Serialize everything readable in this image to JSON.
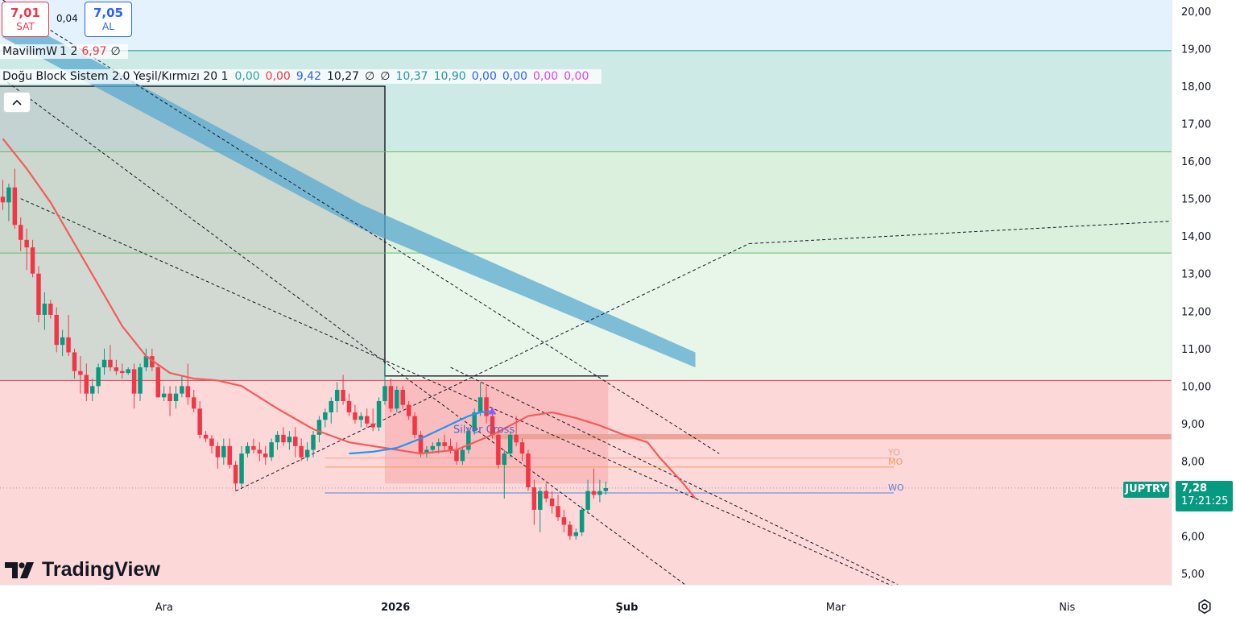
{
  "quote": {
    "sell_price": "7,01",
    "sell_label": "SAT",
    "spread": "0,04",
    "buy_price": "7,05",
    "buy_label": "AL"
  },
  "legend": {
    "indicator1": {
      "name": "MavilimW",
      "params": "1 2",
      "value": "6,97",
      "value_color": "#f23645",
      "trail": "∅"
    },
    "indicator2": {
      "name": "Doğu Block Sistem 2.0",
      "params": "Yeşil/Kırmızı 20 1",
      "values": [
        {
          "text": "0,00",
          "color": "#26a69a"
        },
        {
          "text": "0,00",
          "color": "#f23645"
        },
        {
          "text": "9,42",
          "color": "#2962ff"
        },
        {
          "text": "10,27",
          "color": "#131722"
        },
        {
          "text": "∅",
          "color": "#131722"
        },
        {
          "text": "∅",
          "color": "#131722"
        },
        {
          "text": "10,37",
          "color": "#2196a6"
        },
        {
          "text": "10,90",
          "color": "#2196a6"
        },
        {
          "text": "0,00",
          "color": "#2962ff"
        },
        {
          "text": "0,00",
          "color": "#2962ff"
        },
        {
          "text": "0,00",
          "color": "#e040fb"
        },
        {
          "text": "0,00",
          "color": "#e040fb"
        }
      ]
    }
  },
  "collapse_icon": "chevron-up-icon",
  "logo_text": "TradingView",
  "symbol": "JUPTRY",
  "last_price": "7,28",
  "countdown": "17:21:25",
  "annotations": {
    "silver_cross": "Silver Cross",
    "yo": "YO",
    "mo": "MO",
    "wo": "WO"
  },
  "chart_data": {
    "type": "candlestick",
    "symbol": "JUPTRY",
    "ylim": [
      4.7,
      20.3
    ],
    "yticks": [
      "5,00",
      "6,00",
      "7,00",
      "8,00",
      "9,00",
      "10,00",
      "11,00",
      "12,00",
      "13,00",
      "14,00",
      "15,00",
      "16,00",
      "17,00",
      "18,00",
      "19,00",
      "20,00"
    ],
    "ytick_values": [
      5,
      6,
      7,
      8,
      9,
      10,
      11,
      12,
      13,
      14,
      15,
      16,
      17,
      18,
      19,
      20
    ],
    "xticks": [
      {
        "label": "Ara",
        "date": "2025-12-01",
        "bold": false
      },
      {
        "label": "2026",
        "date": "2026-01-01",
        "bold": true
      },
      {
        "label": "Şub",
        "date": "2026-02-01",
        "bold": true
      },
      {
        "label": "Mar",
        "date": "2026-03-01",
        "bold": false
      },
      {
        "label": "Nis",
        "date": "2026-04-01",
        "bold": false
      }
    ],
    "x_range": [
      "2025-11-09",
      "2026-04-15"
    ],
    "candle_start_date": "2025-11-09",
    "candles": [
      [
        15.05,
        15.5,
        14.7,
        14.9
      ],
      [
        14.9,
        15.4,
        14.4,
        15.3
      ],
      [
        15.3,
        15.8,
        14.2,
        14.3
      ],
      [
        14.3,
        14.5,
        13.6,
        13.9
      ],
      [
        13.9,
        14.2,
        13.1,
        13.7
      ],
      [
        13.7,
        13.9,
        12.9,
        13.0
      ],
      [
        13.0,
        13.2,
        11.7,
        11.9
      ],
      [
        11.9,
        12.5,
        11.5,
        12.2
      ],
      [
        12.2,
        12.3,
        11.8,
        11.9
      ],
      [
        11.9,
        12.1,
        10.9,
        11.1
      ],
      [
        11.1,
        11.5,
        10.8,
        11.3
      ],
      [
        11.3,
        11.9,
        10.8,
        10.9
      ],
      [
        10.9,
        11.0,
        10.2,
        10.4
      ],
      [
        10.4,
        10.8,
        9.8,
        10.3
      ],
      [
        10.3,
        10.6,
        9.6,
        9.8
      ],
      [
        9.8,
        10.2,
        9.6,
        10.0
      ],
      [
        10.0,
        10.6,
        9.8,
        10.5
      ],
      [
        10.5,
        11.0,
        10.3,
        10.7
      ],
      [
        10.7,
        11.1,
        10.4,
        10.5
      ],
      [
        10.5,
        10.7,
        10.3,
        10.4
      ],
      [
        10.4,
        10.6,
        10.2,
        10.35
      ],
      [
        10.35,
        10.5,
        10.3,
        10.45
      ],
      [
        10.45,
        10.6,
        9.4,
        9.8
      ],
      [
        9.8,
        10.6,
        9.6,
        10.5
      ],
      [
        10.5,
        11.0,
        10.4,
        10.8
      ],
      [
        10.8,
        11.0,
        10.4,
        10.5
      ],
      [
        10.5,
        10.6,
        9.7,
        9.7
      ],
      [
        9.7,
        10.0,
        9.6,
        9.8
      ],
      [
        9.8,
        10.0,
        9.2,
        9.6
      ],
      [
        9.6,
        10.0,
        9.4,
        9.8
      ],
      [
        9.8,
        10.3,
        9.7,
        10.0
      ],
      [
        10.0,
        10.6,
        9.5,
        9.7
      ],
      [
        9.7,
        9.9,
        9.3,
        9.4
      ],
      [
        9.4,
        9.6,
        8.6,
        8.7
      ],
      [
        8.7,
        8.8,
        8.5,
        8.6
      ],
      [
        8.6,
        8.7,
        8.2,
        8.4
      ],
      [
        8.4,
        8.5,
        7.8,
        8.1
      ],
      [
        8.1,
        8.6,
        7.9,
        8.4
      ],
      [
        8.4,
        8.6,
        7.8,
        7.9
      ],
      [
        7.9,
        8.0,
        7.2,
        7.4
      ],
      [
        7.4,
        8.4,
        7.3,
        8.2
      ],
      [
        8.2,
        8.5,
        8.1,
        8.4
      ],
      [
        8.4,
        8.6,
        8.2,
        8.3
      ],
      [
        8.3,
        8.5,
        8.0,
        8.2
      ],
      [
        8.2,
        8.4,
        7.9,
        8.1
      ],
      [
        8.1,
        8.6,
        8.0,
        8.5
      ],
      [
        8.5,
        8.8,
        8.3,
        8.7
      ],
      [
        8.7,
        8.9,
        8.4,
        8.5
      ],
      [
        8.5,
        8.8,
        8.3,
        8.65
      ],
      [
        8.65,
        8.9,
        8.1,
        8.4
      ],
      [
        8.4,
        8.6,
        8.0,
        8.1
      ],
      [
        8.1,
        8.5,
        8.0,
        8.3
      ],
      [
        8.3,
        8.8,
        8.1,
        8.7
      ],
      [
        8.7,
        9.2,
        8.5,
        9.1
      ],
      [
        9.1,
        9.4,
        8.9,
        9.3
      ],
      [
        9.3,
        9.7,
        9.0,
        9.6
      ],
      [
        9.6,
        10.1,
        9.3,
        9.9
      ],
      [
        9.9,
        10.3,
        9.5,
        9.6
      ],
      [
        9.6,
        9.8,
        9.2,
        9.3
      ],
      [
        9.3,
        9.5,
        9.0,
        9.1
      ],
      [
        9.1,
        9.3,
        8.9,
        9.2
      ],
      [
        9.2,
        9.4,
        8.9,
        9.0
      ],
      [
        9.0,
        9.4,
        8.8,
        8.9
      ],
      [
        8.9,
        9.7,
        8.8,
        9.6
      ],
      [
        9.6,
        10.6,
        9.5,
        10.0
      ],
      [
        10.0,
        10.2,
        9.3,
        9.4
      ],
      [
        9.4,
        10.0,
        9.3,
        9.9
      ],
      [
        9.9,
        10.0,
        9.4,
        9.5
      ],
      [
        9.5,
        9.6,
        9.1,
        9.2
      ],
      [
        9.2,
        9.3,
        8.6,
        8.7
      ],
      [
        8.7,
        8.8,
        8.1,
        8.2
      ],
      [
        8.2,
        8.4,
        8.1,
        8.3
      ],
      [
        8.3,
        8.5,
        8.2,
        8.4
      ],
      [
        8.4,
        8.6,
        8.2,
        8.5
      ],
      [
        8.5,
        8.7,
        8.3,
        8.4
      ],
      [
        8.4,
        8.6,
        8.2,
        8.3
      ],
      [
        8.3,
        8.5,
        7.9,
        8.0
      ],
      [
        8.0,
        8.4,
        7.9,
        8.3
      ],
      [
        8.3,
        8.9,
        8.2,
        8.8
      ],
      [
        8.8,
        9.4,
        8.7,
        9.3
      ],
      [
        9.3,
        10.1,
        9.2,
        9.7
      ],
      [
        9.7,
        10.0,
        9.0,
        9.2
      ],
      [
        9.2,
        9.3,
        8.6,
        8.7
      ],
      [
        8.7,
        8.9,
        7.8,
        7.9
      ],
      [
        7.9,
        8.3,
        7.0,
        8.2
      ],
      [
        8.2,
        8.8,
        8.1,
        8.7
      ],
      [
        8.7,
        9.2,
        8.4,
        8.5
      ],
      [
        8.5,
        8.6,
        8.0,
        8.2
      ],
      [
        8.2,
        8.3,
        7.2,
        7.3
      ],
      [
        7.3,
        7.5,
        6.3,
        6.7
      ],
      [
        6.7,
        7.3,
        6.1,
        7.2
      ],
      [
        7.2,
        7.4,
        6.9,
        7.0
      ],
      [
        7.0,
        7.2,
        6.6,
        6.8
      ],
      [
        6.8,
        7.1,
        6.4,
        6.5
      ],
      [
        6.5,
        6.7,
        6.1,
        6.3
      ],
      [
        6.3,
        6.4,
        5.9,
        6.0
      ],
      [
        6.0,
        6.2,
        5.9,
        6.1
      ],
      [
        6.1,
        6.8,
        6.0,
        6.7
      ],
      [
        6.7,
        7.5,
        6.6,
        7.2
      ],
      [
        7.2,
        7.8,
        7.0,
        7.1
      ],
      [
        7.1,
        7.5,
        6.9,
        7.2
      ],
      [
        7.2,
        7.45,
        7.1,
        7.28
      ]
    ],
    "mavilim_line": [
      [
        0,
        16.6
      ],
      [
        4,
        15.8
      ],
      [
        8,
        14.9
      ],
      [
        12,
        13.8
      ],
      [
        16,
        12.7
      ],
      [
        20,
        11.6
      ],
      [
        24,
        10.8
      ],
      [
        28,
        10.35
      ],
      [
        32,
        10.2
      ],
      [
        36,
        10.15
      ],
      [
        40,
        10.0
      ],
      [
        42,
        9.8
      ],
      [
        46,
        9.4
      ],
      [
        52,
        8.85
      ],
      [
        58,
        8.5
      ],
      [
        64,
        8.35
      ],
      [
        68,
        8.25
      ],
      [
        70,
        8.2
      ],
      [
        76,
        8.3
      ],
      [
        82,
        8.7
      ],
      [
        88,
        9.2
      ],
      [
        92,
        9.3
      ],
      [
        96,
        9.15
      ],
      [
        100,
        8.95
      ],
      [
        104,
        8.7
      ],
      [
        108,
        8.5
      ],
      [
        110,
        8.1
      ],
      [
        114,
        7.4
      ],
      [
        116,
        7.0
      ]
    ],
    "silver_cross_line": [
      [
        58,
        8.2
      ],
      [
        62,
        8.25
      ],
      [
        66,
        8.35
      ],
      [
        70,
        8.6
      ],
      [
        74,
        8.9
      ],
      [
        76,
        9.05
      ],
      [
        78,
        9.2
      ],
      [
        80,
        9.3
      ],
      [
        82,
        9.33
      ]
    ],
    "cloud_band": [
      {
        "upper": [
          [
            0,
            20.0
          ],
          [
            60,
            14.85
          ],
          [
            116,
            10.9
          ]
        ]
      },
      {
        "lower": [
          [
            0,
            19.3
          ],
          [
            60,
            14.2
          ],
          [
            116,
            10.5
          ]
        ]
      }
    ],
    "horizontal_levels": [
      {
        "name": "level-19",
        "value": 18.95,
        "color": "#089981"
      },
      {
        "name": "level-16",
        "value": 16.25,
        "color": "#66bb6a"
      },
      {
        "name": "level-13",
        "value": 13.55,
        "color": "#66bb6a"
      },
      {
        "name": "level-10",
        "value": 10.15,
        "color": "#f23645"
      },
      {
        "name": "level-8-65",
        "value": 8.65,
        "color": "#e8a090"
      },
      {
        "name": "level-yo",
        "value": 8.08,
        "color": "#f6a18e"
      },
      {
        "name": "level-mo",
        "value": 7.84,
        "color": "#f59e57"
      },
      {
        "name": "level-wo",
        "value": 7.15,
        "color": "#5b7fd6"
      },
      {
        "name": "last-price",
        "value": 7.28,
        "color": "#9598a1"
      }
    ],
    "zones": [
      {
        "name": "upper-blue",
        "from": 18.95,
        "to": 20.3,
        "color": "#e3f2fd"
      },
      {
        "name": "upper-teal",
        "from": 16.25,
        "to": 18.95,
        "color": "#cdeae6"
      },
      {
        "name": "upper-green",
        "from": 13.55,
        "to": 16.25,
        "color": "#dcf0de"
      },
      {
        "name": "mid-green",
        "from": 10.15,
        "to": 13.55,
        "color": "#e8f5e9"
      },
      {
        "name": "lower-red",
        "from": 4.7,
        "to": 10.15,
        "color": "#fdd8d9"
      }
    ]
  }
}
